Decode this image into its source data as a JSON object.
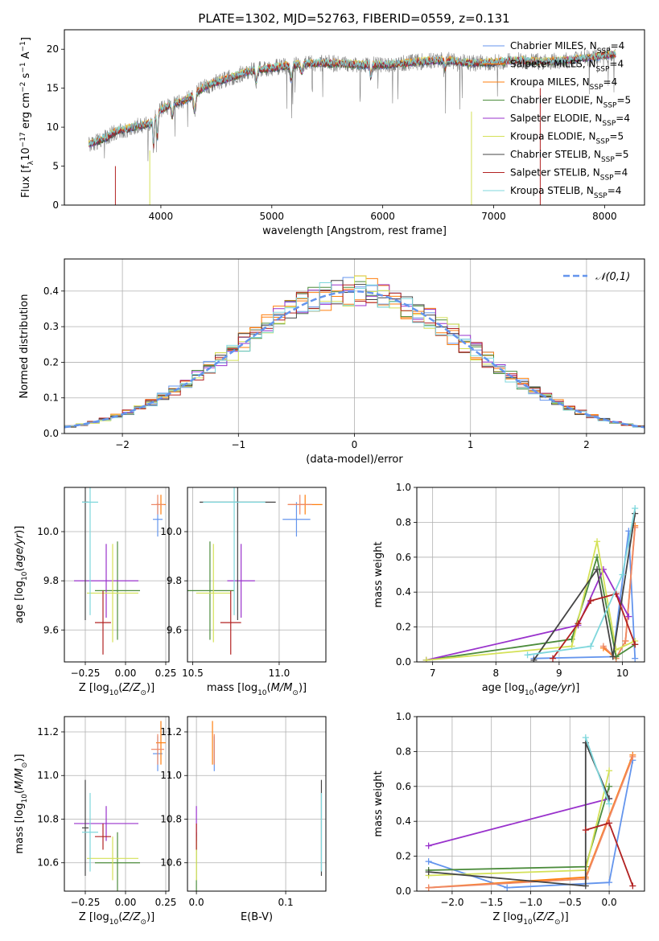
{
  "figure_title": "PLATE=1302, MJD=52763, FIBERID=0559, z=0.131",
  "chart_data": [
    {
      "id": "spectrum",
      "type": "line",
      "title": "PLATE=1302, MJD=52763, FIBERID=0559, z=0.131",
      "xlabel": "wavelength [Angstrom, rest frame]",
      "ylabel": "Flux [f_λ10^-17 erg cm^-2 s^-1 A^-1]",
      "xlim": [
        3130,
        8360
      ],
      "ylim": [
        0,
        22.5
      ],
      "xticks": [
        4000,
        5000,
        6000,
        7000,
        8000
      ],
      "yticks": [
        0,
        5,
        10,
        15,
        20
      ],
      "legend_position": "right",
      "series": [
        {
          "name": "Chabrier MILES, N_SSP=4",
          "color": "#6495ed"
        },
        {
          "name": "Salpeter MILES, N_SSP=4",
          "color": "#ff7f0e"
        },
        {
          "name": "Kroupa MILES, N_SSP=4",
          "color": "#ff7f0e"
        },
        {
          "name": "Chabrier ELODIE, N_SSP=5",
          "color": "#4c8c3c"
        },
        {
          "name": "Salpeter ELODIE, N_SSP=4",
          "color": "#9932cc"
        },
        {
          "name": "Kroupa ELODIE, N_SSP=5",
          "color": "#d4e157"
        },
        {
          "name": "Chabrier STELIB, N_SSP=5",
          "color": "#444444"
        },
        {
          "name": "Salpeter STELIB, N_SSP=4",
          "color": "#b22222"
        },
        {
          "name": "Kroupa STELIB, N_SSP=4",
          "color": "#7fd7dc"
        }
      ],
      "approx_continuum": {
        "x": [
          3350,
          3500,
          3600,
          3700,
          3800,
          3900,
          4000,
          4100,
          4200,
          4300,
          4400,
          4500,
          4600,
          4800,
          5000,
          5200,
          5400,
          5600,
          5800,
          6000,
          6200,
          6400,
          6600,
          6800,
          7000,
          7200,
          7400,
          7600,
          7800,
          8000,
          8100
        ],
        "y": [
          7.8,
          8.6,
          9.5,
          9.8,
          10.2,
          10.4,
          12.2,
          13.0,
          13.3,
          14.3,
          15.2,
          15.8,
          16.2,
          17.2,
          17.6,
          18.0,
          18.2,
          18.2,
          18.0,
          18.0,
          18.2,
          18.5,
          18.6,
          18.2,
          18.3,
          18.6,
          18.4,
          18.5,
          18.8,
          19.2,
          19.4
        ]
      }
    },
    {
      "id": "residuals",
      "type": "histogram",
      "xlabel": "(data-model)/error",
      "ylabel": "Normed distribution",
      "xlim": [
        -2.5,
        2.5
      ],
      "ylim": [
        0,
        0.49
      ],
      "xticks": [
        -2,
        -1,
        0,
        1,
        2
      ],
      "yticks": [
        0.0,
        0.1,
        0.2,
        0.3,
        0.4
      ],
      "reference_curve": {
        "name": "𝒩(0,1)",
        "color": "#6495ed",
        "style": "dashed"
      },
      "grid": true,
      "legend_position": "top-right"
    },
    {
      "id": "age_vs_Z",
      "type": "errorbar",
      "xlabel": "Z [log10(Z/Z⊙)]",
      "ylabel": "age [log10(age/yr)]",
      "xlim": [
        -0.38,
        0.27
      ],
      "ylim": [
        9.47,
        10.18
      ],
      "xticks": [
        -0.25,
        0.0,
        0.25
      ],
      "yticks": [
        9.6,
        9.8,
        10.0
      ],
      "grid": true,
      "points": [
        {
          "series": "Chabrier MILES",
          "x": 0.2,
          "y": 10.05,
          "xerr": 0.03,
          "yerr": 0.07
        },
        {
          "series": "Salpeter MILES",
          "x": 0.22,
          "y": 10.11,
          "xerr": 0.03,
          "yerr": 0.04
        },
        {
          "series": "Kroupa MILES",
          "x": 0.2,
          "y": 10.11,
          "xerr": 0.04,
          "yerr": 0.04
        },
        {
          "series": "Chabrier ELODIE",
          "x": -0.05,
          "y": 9.76,
          "xerr": 0.14,
          "yerr": 0.2
        },
        {
          "series": "Salpeter ELODIE",
          "x": -0.12,
          "y": 9.8,
          "xerr": 0.2,
          "yerr": 0.15
        },
        {
          "series": "Kroupa ELODIE",
          "x": -0.08,
          "y": 9.75,
          "xerr": 0.16,
          "yerr": 0.2
        },
        {
          "series": "Chabrier STELIB",
          "x": -0.25,
          "y": 10.12,
          "xerr": 0.02,
          "yerr": 0.48
        },
        {
          "series": "Salpeter STELIB",
          "x": -0.14,
          "y": 9.63,
          "xerr": 0.05,
          "yerr": 0.13
        },
        {
          "series": "Kroupa STELIB",
          "x": -0.22,
          "y": 10.12,
          "xerr": 0.05,
          "yerr": 0.46
        }
      ]
    },
    {
      "id": "age_vs_mass",
      "type": "errorbar",
      "xlabel": "mass [log10(M/M⊙)]",
      "ylabel": "",
      "xlim": [
        10.47,
        11.27
      ],
      "ylim": [
        9.47,
        10.18
      ],
      "xticks": [
        10.5,
        11.0
      ],
      "yticks": [
        9.6,
        9.8,
        10.0
      ],
      "grid": true,
      "points": [
        {
          "series": "Chabrier MILES",
          "x": 11.1,
          "y": 10.05,
          "xerr": 0.08,
          "yerr": 0.07
        },
        {
          "series": "Salpeter MILES",
          "x": 11.15,
          "y": 10.11,
          "xerr": 0.1,
          "yerr": 0.04
        },
        {
          "series": "Kroupa MILES",
          "x": 11.12,
          "y": 10.11,
          "xerr": 0.07,
          "yerr": 0.04
        },
        {
          "series": "Chabrier ELODIE",
          "x": 10.6,
          "y": 9.76,
          "xerr": 0.14,
          "yerr": 0.2
        },
        {
          "series": "Salpeter ELODIE",
          "x": 10.78,
          "y": 9.8,
          "xerr": 0.08,
          "yerr": 0.15
        },
        {
          "series": "Kroupa ELODIE",
          "x": 10.62,
          "y": 9.75,
          "xerr": 0.1,
          "yerr": 0.2
        },
        {
          "series": "Chabrier STELIB",
          "x": 10.76,
          "y": 10.12,
          "xerr": 0.22,
          "yerr": 0.48
        },
        {
          "series": "Salpeter STELIB",
          "x": 10.72,
          "y": 9.63,
          "xerr": 0.06,
          "yerr": 0.13
        },
        {
          "series": "Kroupa STELIB",
          "x": 10.74,
          "y": 10.12,
          "xerr": 0.18,
          "yerr": 0.46
        }
      ]
    },
    {
      "id": "massweight_vs_age",
      "type": "line",
      "xlabel": "age [log10(age/yr)]",
      "ylabel": "mass weight",
      "xlim": [
        6.75,
        10.35
      ],
      "ylim": [
        0,
        1.0
      ],
      "xticks": [
        7,
        8,
        9,
        10
      ],
      "yticks": [
        0.0,
        0.2,
        0.4,
        0.6,
        0.8,
        1.0
      ],
      "grid": true,
      "series": [
        {
          "name": "Chabrier MILES",
          "color": "#6495ed",
          "x": [
            8.6,
            9.85,
            10.1,
            10.2
          ],
          "y": [
            0.02,
            0.03,
            0.75,
            0.02
          ]
        },
        {
          "name": "Salpeter MILES",
          "color": "#ff7f0e",
          "x": [
            9.7,
            9.9,
            10.05,
            10.2
          ],
          "y": [
            0.08,
            0.02,
            0.12,
            0.78
          ]
        },
        {
          "name": "Kroupa MILES",
          "color": "#ee8866",
          "x": [
            9.7,
            9.9,
            10.05,
            10.2
          ],
          "y": [
            0.09,
            0.02,
            0.12,
            0.77
          ]
        },
        {
          "name": "Chabrier ELODIE",
          "color": "#4c8c3c",
          "x": [
            6.9,
            9.2,
            9.6,
            9.9,
            10.2
          ],
          "y": [
            0.01,
            0.13,
            0.6,
            0.03,
            0.1
          ]
        },
        {
          "name": "Salpeter ELODIE",
          "color": "#9932cc",
          "x": [
            6.9,
            9.3,
            9.7,
            10.1
          ],
          "y": [
            0.01,
            0.21,
            0.53,
            0.26
          ]
        },
        {
          "name": "Kroupa ELODIE",
          "color": "#d4e157",
          "x": [
            6.9,
            9.2,
            9.6,
            9.9,
            10.2
          ],
          "y": [
            0.01,
            0.09,
            0.69,
            0.07,
            0.12
          ]
        },
        {
          "name": "Chabrier STELIB",
          "color": "#444444",
          "x": [
            8.6,
            9.6,
            9.85,
            10.2
          ],
          "y": [
            0.01,
            0.53,
            0.03,
            0.85
          ]
        },
        {
          "name": "Salpeter STELIB",
          "color": "#b22222",
          "x": [
            8.9,
            9.3,
            9.5,
            9.9,
            10.2
          ],
          "y": [
            0.02,
            0.22,
            0.35,
            0.39,
            0.1
          ]
        },
        {
          "name": "Kroupa STELIB",
          "color": "#7fd7dc",
          "x": [
            8.5,
            9.5,
            10.0,
            10.2
          ],
          "y": [
            0.04,
            0.09,
            0.5,
            0.88
          ]
        }
      ]
    },
    {
      "id": "mass_vs_Z",
      "type": "errorbar",
      "xlabel": "Z [log10(Z/Z⊙)]",
      "ylabel": "mass [log10(M/M⊙)]",
      "xlim": [
        -0.38,
        0.27
      ],
      "ylim": [
        10.47,
        11.27
      ],
      "xticks": [
        -0.25,
        0.0,
        0.25
      ],
      "yticks": [
        10.6,
        10.8,
        11.0,
        11.2
      ],
      "grid": true,
      "points": [
        {
          "series": "Chabrier MILES",
          "x": 0.2,
          "y": 11.1,
          "xerr": 0.03,
          "yerr": 0.08
        },
        {
          "series": "Salpeter MILES",
          "x": 0.22,
          "y": 11.15,
          "xerr": 0.03,
          "yerr": 0.1
        },
        {
          "series": "Kroupa MILES",
          "x": 0.2,
          "y": 11.12,
          "xerr": 0.04,
          "yerr": 0.07
        },
        {
          "series": "Chabrier ELODIE",
          "x": -0.05,
          "y": 10.6,
          "xerr": 0.14,
          "yerr": 0.14
        },
        {
          "series": "Salpeter ELODIE",
          "x": -0.12,
          "y": 10.78,
          "xerr": 0.2,
          "yerr": 0.08
        },
        {
          "series": "Kroupa ELODIE",
          "x": -0.08,
          "y": 10.62,
          "xerr": 0.16,
          "yerr": 0.1
        },
        {
          "series": "Chabrier STELIB",
          "x": -0.25,
          "y": 10.76,
          "xerr": 0.02,
          "yerr": 0.22
        },
        {
          "series": "Salpeter STELIB",
          "x": -0.14,
          "y": 10.72,
          "xerr": 0.05,
          "yerr": 0.06
        },
        {
          "series": "Kroupa STELIB",
          "x": -0.22,
          "y": 10.74,
          "xerr": 0.05,
          "yerr": 0.18
        }
      ]
    },
    {
      "id": "mass_vs_EBV",
      "type": "errorbar",
      "xlabel": "E(B-V)",
      "ylabel": "",
      "xlim": [
        -0.01,
        0.145
      ],
      "ylim": [
        10.47,
        11.27
      ],
      "xticks": [
        0.0,
        0.1
      ],
      "yticks": [
        10.6,
        10.8,
        11.0,
        11.2
      ],
      "grid": true,
      "points": [
        {
          "series": "Chabrier MILES",
          "x": 0.02,
          "y": 11.1,
          "xerr": 0.0,
          "yerr": 0.08
        },
        {
          "series": "Salpeter MILES",
          "x": 0.018,
          "y": 11.15,
          "xerr": 0.0,
          "yerr": 0.1
        },
        {
          "series": "Kroupa MILES",
          "x": 0.02,
          "y": 11.12,
          "xerr": 0.0,
          "yerr": 0.07
        },
        {
          "series": "Chabrier ELODIE",
          "x": 0.0,
          "y": 10.6,
          "xerr": 0.0,
          "yerr": 0.14
        },
        {
          "series": "Salpeter ELODIE",
          "x": 0.0,
          "y": 10.78,
          "xerr": 0.0,
          "yerr": 0.08
        },
        {
          "series": "Kroupa ELODIE",
          "x": 0.0,
          "y": 10.62,
          "xerr": 0.0,
          "yerr": 0.1
        },
        {
          "series": "Chabrier STELIB",
          "x": 0.14,
          "y": 10.76,
          "xerr": 0.0,
          "yerr": 0.22
        },
        {
          "series": "Salpeter STELIB",
          "x": 0.0,
          "y": 10.72,
          "xerr": 0.0,
          "yerr": 0.06
        },
        {
          "series": "Kroupa STELIB",
          "x": 0.14,
          "y": 10.74,
          "xerr": 0.0,
          "yerr": 0.18
        }
      ]
    },
    {
      "id": "massweight_vs_Z",
      "type": "line",
      "xlabel": "Z [log10(Z/Z⊙)]",
      "ylabel": "mass weight",
      "xlim": [
        -2.45,
        0.45
      ],
      "ylim": [
        0,
        1.0
      ],
      "xticks": [
        -2.0,
        -1.5,
        -1.0,
        -0.5,
        0.0
      ],
      "yticks": [
        0.0,
        0.2,
        0.4,
        0.6,
        0.8,
        1.0
      ],
      "grid": true,
      "series": [
        {
          "name": "Chabrier MILES",
          "color": "#6495ed",
          "x": [
            -2.3,
            -1.3,
            0.0,
            0.3
          ],
          "y": [
            0.17,
            0.02,
            0.05,
            0.75
          ]
        },
        {
          "name": "Salpeter MILES",
          "color": "#ff7f0e",
          "x": [
            -2.3,
            -0.3,
            0.3
          ],
          "y": [
            0.02,
            0.08,
            0.78
          ]
        },
        {
          "name": "Kroupa MILES",
          "color": "#ee8866",
          "x": [
            -2.3,
            -0.3,
            0.3
          ],
          "y": [
            0.02,
            0.07,
            0.77
          ]
        },
        {
          "name": "Chabrier ELODIE",
          "color": "#4c8c3c",
          "x": [
            -2.3,
            -0.3,
            0.0
          ],
          "y": [
            0.12,
            0.14,
            0.6
          ]
        },
        {
          "name": "Salpeter ELODIE",
          "color": "#9932cc",
          "x": [
            -2.3,
            0.0
          ],
          "y": [
            0.26,
            0.53
          ]
        },
        {
          "name": "Kroupa ELODIE",
          "color": "#d4e157",
          "x": [
            -2.3,
            -0.3,
            0.0
          ],
          "y": [
            0.09,
            0.12,
            0.69
          ]
        },
        {
          "name": "Chabrier STELIB",
          "color": "#444444",
          "x": [
            -2.3,
            -0.3,
            -0.3,
            0.0
          ],
          "y": [
            0.11,
            0.03,
            0.85,
            0.53
          ]
        },
        {
          "name": "Salpeter STELIB",
          "color": "#b22222",
          "x": [
            -0.3,
            0.0,
            0.3
          ],
          "y": [
            0.35,
            0.39,
            0.03
          ]
        },
        {
          "name": "Kroupa STELIB",
          "color": "#7fd7dc",
          "x": [
            -0.3,
            0.0
          ],
          "y": [
            0.88,
            0.5
          ]
        }
      ]
    }
  ]
}
